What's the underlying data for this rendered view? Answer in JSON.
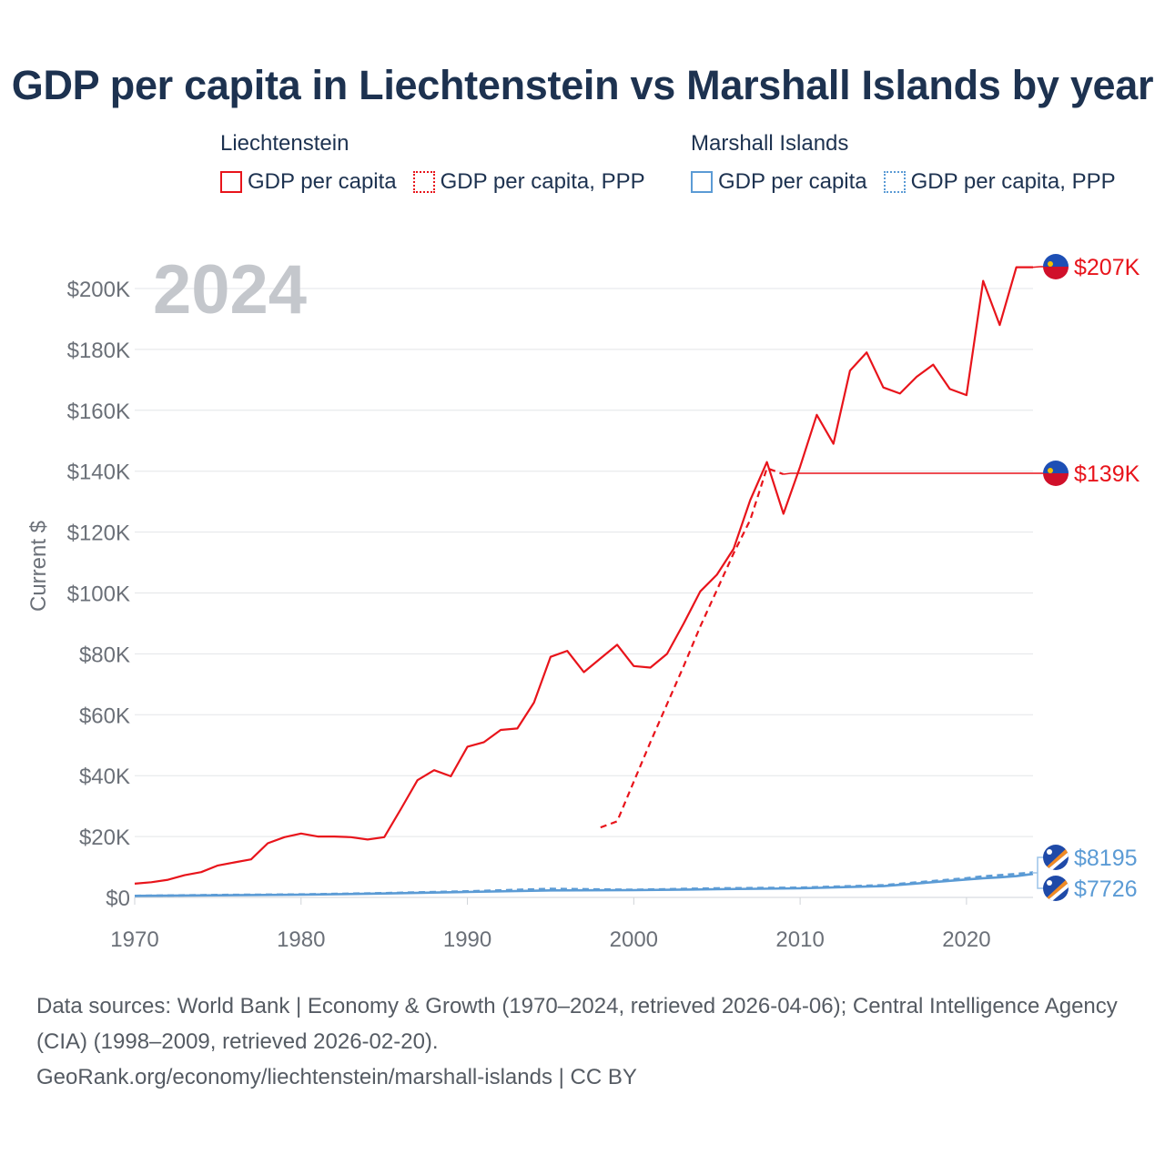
{
  "title": "GDP per capita in Liechtenstein vs Marshall Islands by year",
  "legend": {
    "groups": [
      {
        "name": "Liechtenstein",
        "items": [
          {
            "label": "GDP per capita",
            "style": "solid",
            "color": "#e8141b"
          },
          {
            "label": "GDP per capita, PPP",
            "style": "dotted",
            "color": "#e8141b"
          }
        ]
      },
      {
        "name": "Marshall Islands",
        "items": [
          {
            "label": "GDP per capita",
            "style": "solid",
            "color": "#5b9bd5"
          },
          {
            "label": "GDP per capita, PPP",
            "style": "dotted",
            "color": "#5b9bd5"
          }
        ]
      }
    ]
  },
  "chart_data": {
    "type": "line",
    "year_label": "2024",
    "ylabel": "Current $",
    "xlabel": "",
    "xlim": [
      1970,
      2024
    ],
    "ylim": [
      0,
      210000
    ],
    "yticks": [
      0,
      20000,
      40000,
      60000,
      80000,
      100000,
      120000,
      140000,
      160000,
      180000,
      200000
    ],
    "ytick_labels": [
      "$0",
      "$20K",
      "$40K",
      "$60K",
      "$80K",
      "$100K",
      "$120K",
      "$140K",
      "$160K",
      "$180K",
      "$200K"
    ],
    "xticks": [
      1970,
      1980,
      1990,
      2000,
      2010,
      2020
    ],
    "xtick_labels": [
      "1970",
      "1980",
      "1990",
      "2000",
      "2010",
      "2020"
    ],
    "grid": true,
    "series": [
      {
        "name": "Liechtenstein GDP per capita",
        "color": "#e8141b",
        "dash": "solid",
        "end_label": "$207K",
        "x": [
          1970,
          1971,
          1972,
          1973,
          1974,
          1975,
          1976,
          1977,
          1978,
          1979,
          1980,
          1981,
          1982,
          1983,
          1984,
          1985,
          1986,
          1987,
          1988,
          1989,
          1990,
          1991,
          1992,
          1993,
          1994,
          1995,
          1996,
          1997,
          1998,
          1999,
          2000,
          2001,
          2002,
          2003,
          2004,
          2005,
          2006,
          2007,
          2008,
          2009,
          2010,
          2011,
          2012,
          2013,
          2014,
          2015,
          2016,
          2017,
          2018,
          2019,
          2020,
          2021,
          2022,
          2023,
          2024
        ],
        "values": [
          4500,
          5000,
          5800,
          7300,
          8300,
          10500,
          11500,
          12500,
          17800,
          19800,
          21000,
          20000,
          20000,
          19800,
          19000,
          19800,
          29000,
          38500,
          41800,
          39800,
          49500,
          51000,
          55000,
          55500,
          64000,
          79000,
          81000,
          74000,
          78500,
          83000,
          76000,
          75500,
          80000,
          90000,
          100500,
          106000,
          114500,
          130500,
          143000,
          126000,
          141500,
          158500,
          149000,
          173000,
          179000,
          167500,
          165500,
          171000,
          175000,
          167000,
          165000,
          202500,
          188000,
          207000,
          207000
        ]
      },
      {
        "name": "Liechtenstein GDP per capita, PPP",
        "color": "#e8141b",
        "dash": "dashed",
        "end_label": "$139K",
        "x": [
          1998,
          1999,
          2000,
          2001,
          2002,
          2003,
          2004,
          2005,
          2006,
          2007,
          2008,
          2009
        ],
        "values": [
          23000,
          25000,
          38000,
          51000,
          63500,
          76000,
          89000,
          101000,
          113000,
          124000,
          141000,
          139000
        ]
      },
      {
        "name": "Marshall Islands GDP per capita",
        "color": "#5b9bd5",
        "dash": "solid",
        "end_label": "$7726",
        "x": [
          1970,
          1975,
          1980,
          1985,
          1990,
          1995,
          2000,
          2005,
          2010,
          2015,
          2020,
          2021,
          2022,
          2023,
          2024
        ],
        "values": [
          500,
          700,
          900,
          1300,
          1800,
          2300,
          2400,
          2700,
          3000,
          3700,
          5900,
          6300,
          6600,
          7000,
          7726
        ]
      },
      {
        "name": "Marshall Islands GDP per capita, PPP",
        "color": "#5b9bd5",
        "dash": "dashed",
        "end_label": "$8195",
        "x": [
          1970,
          1975,
          1980,
          1985,
          1990,
          1995,
          2000,
          2005,
          2010,
          2015,
          2020,
          2021,
          2022,
          2023,
          2024
        ],
        "values": [
          500,
          800,
          1000,
          1400,
          2000,
          2800,
          2500,
          3000,
          3200,
          4000,
          6300,
          6900,
          7300,
          7700,
          8195
        ]
      }
    ]
  },
  "footer": {
    "sources": "Data sources: World Bank | Economy & Growth (1970–2024, retrieved 2026-04-06); Central Intelligence Agency (CIA) (1998–2009, retrieved 2026-02-20).",
    "link": "GeoRank.org/economy/liechtenstein/marshall-islands | CC BY"
  }
}
